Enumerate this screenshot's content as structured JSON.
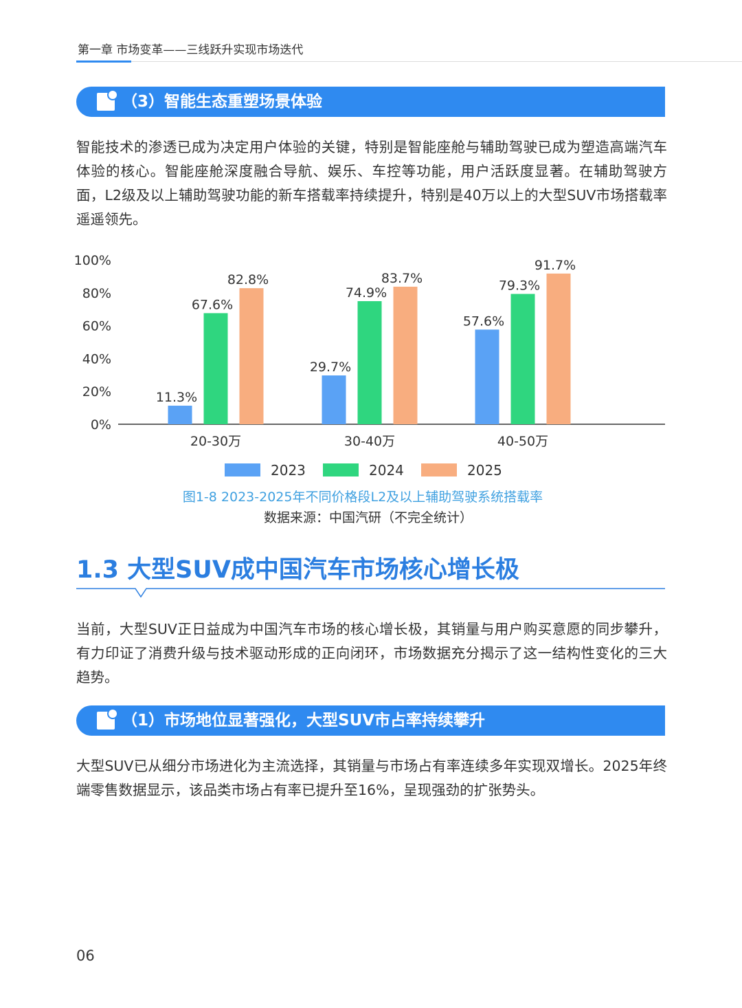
{
  "header": "第一章 市场变革——三线跃升实现市场迭代",
  "subsection_1": {
    "title": "（3）智能生态重塑场景体验",
    "paragraph": "智能技术的渗透已成为决定用户体验的关键，特别是智能座舱与辅助驾驶已成为塑造高端汽车体验的核心。智能座舱深度融合导航、娱乐、车控等功能，用户活跃度显著。在辅助驾驶方面，L2级及以上辅助驾驶功能的新车搭载率持续提升，特别是40万以上的大型SUV市场搭载率遥遥领先。"
  },
  "chart_data": {
    "type": "bar",
    "title": "图1-8 2023-2025年不同价格段L2及以上辅助驾驶系统搭载率",
    "source": "数据来源：中国汽研（不完全统计）",
    "categories": [
      "20-30万",
      "30-40万",
      "40-50万"
    ],
    "series": [
      {
        "name": "2023",
        "color": "#5aa2f5",
        "values": [
          11.3,
          29.7,
          57.6
        ],
        "value_labels": [
          "11.3%",
          "29.7%",
          "57.6%"
        ]
      },
      {
        "name": "2024",
        "color": "#2fd67f",
        "values": [
          67.6,
          74.9,
          79.3
        ],
        "value_labels": [
          "67.6%",
          "74.9%",
          "79.3%"
        ]
      },
      {
        "name": "2025",
        "color": "#f8ad7f",
        "values": [
          82.8,
          83.7,
          91.7
        ],
        "value_labels": [
          "82.8%",
          "83.7%",
          "91.7%"
        ]
      }
    ],
    "ylim": [
      0,
      100
    ],
    "yticks": [
      {
        "value": 0,
        "label": "0%"
      },
      {
        "value": 20,
        "label": "20%"
      },
      {
        "value": 40,
        "label": "40%"
      },
      {
        "value": 60,
        "label": "60%"
      },
      {
        "value": 80,
        "label": "80%"
      },
      {
        "value": 100,
        "label": "100%"
      }
    ],
    "grid": false,
    "legend": "bottom"
  },
  "section": {
    "title": "1.3 大型SUV成中国汽车市场核心增长极",
    "paragraph": "当前，大型SUV正日益成为中国汽车市场的核心增长极，其销量与用户购买意愿的同步攀升，有力印证了消费升级与技术驱动形成的正向闭环，市场数据充分揭示了这一结构性变化的三大趋势。"
  },
  "subsection_2": {
    "title": "（1）市场地位显著强化，大型SUV市占率持续攀升",
    "paragraph": "大型SUV已从细分市场进化为主流选择，其销量与市场占有率连续多年实现双增长。2025年终端零售数据显示，该品类市场占有率已提升至16%，呈现强劲的扩张势头。"
  },
  "page_number": "06"
}
